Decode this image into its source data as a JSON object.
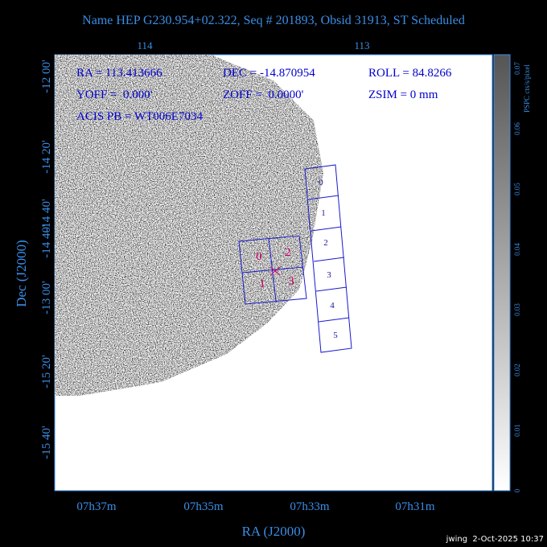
{
  "header": {
    "title": "Name HEP G230.954+02.322, Seq # 201893, Obsid 31913, ST Scheduled"
  },
  "top_axis": {
    "labels": [
      "114",
      "113"
    ]
  },
  "left_axis": {
    "title": "Dec (J2000)",
    "labels": [
      "-12 00'",
      "-14 20'",
      "-14 40'",
      "-14 40'",
      "-13 00'",
      "-15 20'",
      "-15 40'"
    ]
  },
  "bottom_axis": {
    "title": "RA (J2000)",
    "labels": [
      "07h37m",
      "07h35m",
      "07h33m",
      "07h31m"
    ]
  },
  "info": {
    "ra": "RA = 113.413666",
    "dec": "DEC = -14.870954",
    "roll": "ROLL = 84.8266",
    "yoff": "YOFF =  0.000'",
    "zoff": "ZOFF =  0.0000'",
    "zsim": "ZSIM = 0 mm",
    "acis_pb": "ACIS PB = WT006E7034"
  },
  "i_array": {
    "chips": [
      "0",
      "2",
      "1",
      "3"
    ]
  },
  "s_array": {
    "chips": [
      "0",
      "1",
      "2",
      "3",
      "4",
      "5"
    ]
  },
  "colorbar": {
    "label": "PSPC cts/s/pixel",
    "ticks": [
      "0.07",
      "0.06",
      "0.05",
      "0.04",
      "0.03",
      "0.02",
      "0.01",
      "0"
    ]
  },
  "footer": {
    "stamp": "jwing  2-Oct-2025 10:37"
  }
}
